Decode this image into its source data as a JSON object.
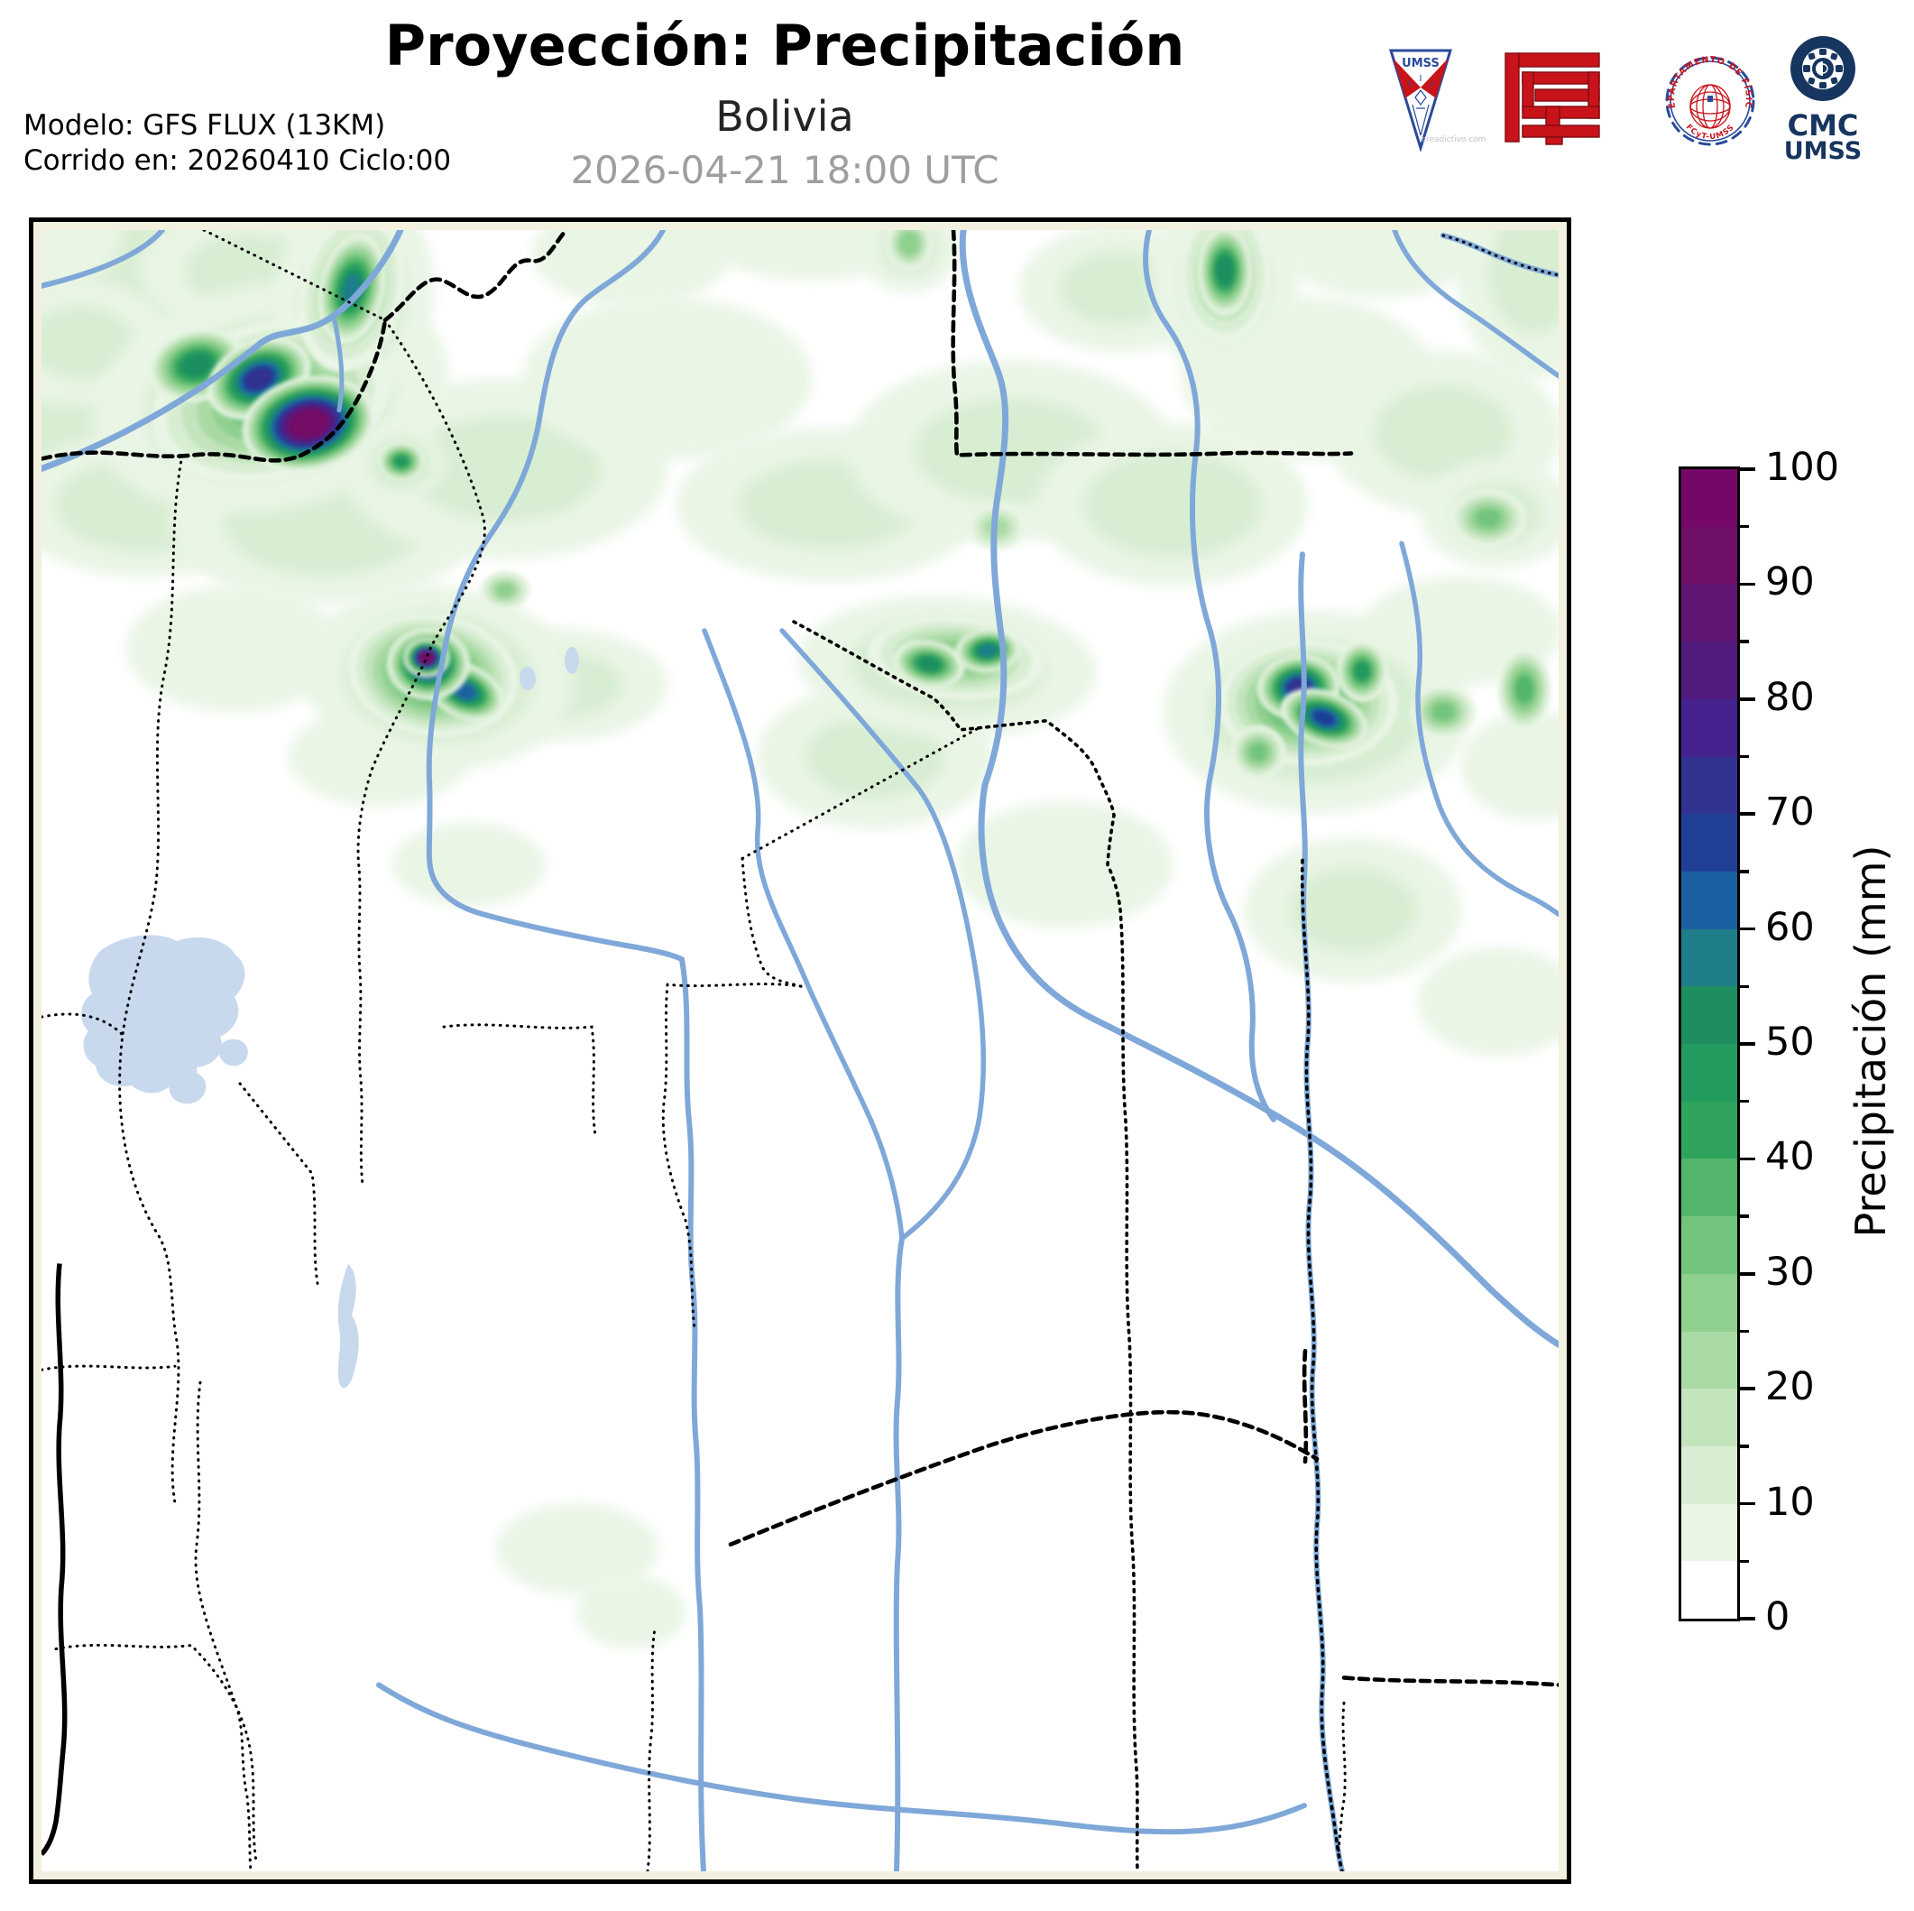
{
  "header": {
    "title": "Proyección: Precipitación",
    "subtitle": "Bolivia",
    "timestamp": "2026-04-21 18:00 UTC",
    "model_line1": "Modelo: GFS FLUX (13KM)",
    "model_line2": "Corrido en: 20260410 Ciclo:00"
  },
  "logos": {
    "umss_label": "UMSS",
    "umss_caption": "creadictivo.com",
    "seal_text_top": "DEPARTAMENTO DE FÍSICA",
    "seal_text_bottom": "FCyT-UMSS",
    "cmc_line1": "CMC",
    "cmc_line2": "UMSS",
    "colors": {
      "red": "#c8131b",
      "blue": "#2a4a9b",
      "navy": "#16355f"
    }
  },
  "colorbar": {
    "label": "Precipitación (mm)",
    "vmin": 0,
    "vmax": 100,
    "major_ticks": [
      0,
      10,
      20,
      30,
      40,
      50,
      60,
      70,
      80,
      90,
      100
    ],
    "minor_step": 5
  },
  "chart_data": {
    "type": "contour-map",
    "region": "Bolivia",
    "variable": "Precipitación (mm)",
    "levels": [
      0,
      5,
      10,
      15,
      20,
      25,
      30,
      35,
      40,
      45,
      50,
      55,
      60,
      65,
      70,
      75,
      80,
      85,
      90,
      95,
      100
    ],
    "colors": [
      "#ffffff",
      "#e9f5e5",
      "#d8eed3",
      "#c3e4bd",
      "#a9daa4",
      "#8fd08f",
      "#73c57e",
      "#52b56b",
      "#30a45e",
      "#239a5e",
      "#1e8e60",
      "#1f7e8a",
      "#1b61a1",
      "#1f4096",
      "#303390",
      "#45228e",
      "#521b7e",
      "#601773",
      "#701068",
      "#750766"
    ],
    "map_colors": {
      "river": "#7fa8d9",
      "lake": "#c8d9ed",
      "border": "#000000",
      "margin": "#f2f0df",
      "land": "#ffffff"
    },
    "cells_format": [
      "x",
      "y",
      "rx",
      "ry",
      "rotation_deg",
      "peak_mm"
    ],
    "cells": [
      [
        94,
        30,
        190,
        120,
        0,
        12
      ],
      [
        44,
        225,
        140,
        92,
        0,
        10
      ],
      [
        114,
        305,
        150,
        80,
        0,
        12
      ],
      [
        314,
        325,
        170,
        90,
        0,
        12
      ],
      [
        514,
        265,
        180,
        100,
        0,
        10
      ],
      [
        694,
        165,
        160,
        90,
        0,
        8
      ],
      [
        874,
        305,
        170,
        85,
        0,
        10
      ],
      [
        1074,
        245,
        180,
        100,
        0,
        10
      ],
      [
        1254,
        305,
        150,
        90,
        0,
        12
      ],
      [
        1404,
        165,
        140,
        90,
        0,
        8
      ],
      [
        1554,
        225,
        130,
        90,
        0,
        10
      ],
      [
        1654,
        45,
        85,
        120,
        0,
        10
      ],
      [
        1484,
        5,
        120,
        70,
        0,
        8
      ],
      [
        1194,
        65,
        110,
        70,
        0,
        10
      ],
      [
        854,
        0,
        130,
        55,
        0,
        8
      ],
      [
        654,
        25,
        110,
        60,
        0,
        8
      ],
      [
        229,
        45,
        120,
        70,
        0,
        10
      ],
      [
        14,
        5,
        75,
        60,
        0,
        8
      ],
      [
        214,
        465,
        120,
        70,
        0,
        8
      ],
      [
        374,
        585,
        100,
        55,
        0,
        8
      ],
      [
        574,
        505,
        120,
        62,
        0,
        10
      ],
      [
        924,
        585,
        130,
        80,
        0,
        10
      ],
      [
        1134,
        705,
        120,
        70,
        0,
        8
      ],
      [
        1574,
        445,
        110,
        60,
        0,
        8
      ],
      [
        1654,
        595,
        80,
        60,
        0,
        8
      ],
      [
        474,
        705,
        85,
        46,
        0,
        8
      ],
      [
        44,
        125,
        100,
        70,
        0,
        10
      ],
      [
        594,
        1465,
        90,
        50,
        0,
        6
      ],
      [
        654,
        1535,
        60,
        40,
        0,
        6
      ],
      [
        1454,
        755,
        120,
        80,
        0,
        10
      ],
      [
        1616,
        857,
        90,
        60,
        0,
        8
      ],
      [
        254,
        185,
        200,
        125,
        -12,
        14
      ],
      [
        346,
        77,
        88,
        125,
        8,
        12
      ],
      [
        440,
        497,
        150,
        102,
        5,
        14
      ],
      [
        399,
        259,
        48,
        40,
        0,
        15
      ],
      [
        1004,
        485,
        165,
        78,
        3,
        12
      ],
      [
        1414,
        535,
        170,
        112,
        0,
        14
      ],
      [
        1312,
        57,
        82,
        112,
        0,
        10
      ],
      [
        962,
        19,
        56,
        50,
        0,
        10
      ],
      [
        1614,
        315,
        85,
        60,
        0,
        10
      ],
      [
        254,
        190,
        135,
        88,
        -15,
        32
      ],
      [
        172,
        150,
        54,
        40,
        -15,
        52
      ],
      [
        241,
        165,
        60,
        42,
        -25,
        72
      ],
      [
        296,
        215,
        74,
        52,
        -12,
        100
      ],
      [
        344,
        67,
        58,
        92,
        12,
        26
      ],
      [
        344,
        65,
        36,
        62,
        12,
        55
      ],
      [
        434,
        494,
        95,
        68,
        10,
        42
      ],
      [
        469,
        512,
        46,
        30,
        25,
        62
      ],
      [
        429,
        482,
        46,
        40,
        0,
        76
      ],
      [
        427,
        475,
        26,
        22,
        0,
        96
      ],
      [
        399,
        257,
        26,
        22,
        0,
        45
      ],
      [
        1014,
        475,
        98,
        46,
        5,
        28
      ],
      [
        984,
        482,
        40,
        26,
        10,
        50
      ],
      [
        1049,
        467,
        36,
        24,
        -5,
        56
      ],
      [
        1404,
        525,
        100,
        70,
        0,
        40
      ],
      [
        1394,
        508,
        46,
        36,
        -5,
        72
      ],
      [
        1422,
        542,
        50,
        30,
        20,
        66
      ],
      [
        1464,
        490,
        28,
        34,
        0,
        45
      ],
      [
        1349,
        580,
        30,
        30,
        0,
        30
      ],
      [
        1554,
        535,
        36,
        30,
        0,
        30
      ],
      [
        1644,
        510,
        30,
        46,
        0,
        36
      ],
      [
        1312,
        49,
        52,
        78,
        0,
        24
      ],
      [
        1312,
        45,
        30,
        50,
        0,
        52
      ],
      [
        962,
        15,
        26,
        30,
        0,
        28
      ],
      [
        1604,
        320,
        42,
        32,
        0,
        30
      ],
      [
        514,
        400,
        28,
        22,
        0,
        25
      ],
      [
        1059,
        330,
        32,
        26,
        0,
        20
      ]
    ]
  }
}
